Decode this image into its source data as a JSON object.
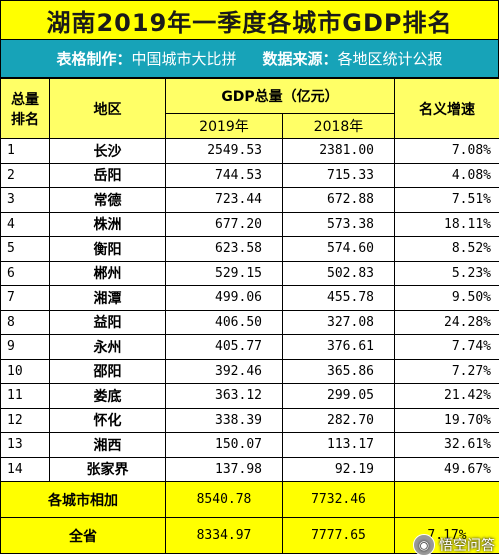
{
  "title": "湖南2019年一季度各城市GDP排名",
  "credits": {
    "maker_label": "表格制作：",
    "maker": "中国城市大比拼",
    "source_label": "数据来源：",
    "source": "各地区统计公报"
  },
  "headers": {
    "rank": "总量排名",
    "region": "地区",
    "gdp_total": "GDP总量（亿元）",
    "year_2019": "2019年",
    "year_2018": "2018年",
    "growth": "名义增速"
  },
  "rows": [
    {
      "rank": "1",
      "city": "长沙",
      "v2019": "2549.53",
      "v2018": "2381.00",
      "growth": "7.08%"
    },
    {
      "rank": "2",
      "city": "岳阳",
      "v2019": "744.53",
      "v2018": "715.33",
      "growth": "4.08%"
    },
    {
      "rank": "3",
      "city": "常德",
      "v2019": "723.44",
      "v2018": "672.88",
      "growth": "7.51%"
    },
    {
      "rank": "4",
      "city": "株洲",
      "v2019": "677.20",
      "v2018": "573.38",
      "growth": "18.11%"
    },
    {
      "rank": "5",
      "city": "衡阳",
      "v2019": "623.58",
      "v2018": "574.60",
      "growth": "8.52%"
    },
    {
      "rank": "6",
      "city": "郴州",
      "v2019": "529.15",
      "v2018": "502.83",
      "growth": "5.23%"
    },
    {
      "rank": "7",
      "city": "湘潭",
      "v2019": "499.06",
      "v2018": "455.78",
      "growth": "9.50%"
    },
    {
      "rank": "8",
      "city": "益阳",
      "v2019": "406.50",
      "v2018": "327.08",
      "growth": "24.28%"
    },
    {
      "rank": "9",
      "city": "永州",
      "v2019": "405.77",
      "v2018": "376.61",
      "growth": "7.74%"
    },
    {
      "rank": "10",
      "city": "邵阳",
      "v2019": "392.46",
      "v2018": "365.86",
      "growth": "7.27%"
    },
    {
      "rank": "11",
      "city": "娄底",
      "v2019": "363.12",
      "v2018": "299.05",
      "growth": "21.42%"
    },
    {
      "rank": "12",
      "city": "怀化",
      "v2019": "338.39",
      "v2018": "282.70",
      "growth": "19.70%"
    },
    {
      "rank": "13",
      "city": "湘西",
      "v2019": "150.07",
      "v2018": "113.17",
      "growth": "32.61%"
    },
    {
      "rank": "14",
      "city": "张家界",
      "v2019": "137.98",
      "v2018": "92.19",
      "growth": "49.67%"
    }
  ],
  "totals": [
    {
      "label": "各城市相加",
      "v2019": "8540.78",
      "v2018": "7732.46",
      "growth": ""
    },
    {
      "label": "全省",
      "v2019": "8334.97",
      "v2018": "7777.65",
      "growth": "7.17%"
    }
  ],
  "watermark": "悟空问答",
  "colors": {
    "title_bg": "#ffff00",
    "subtitle_bg": "#17a3b8",
    "header_bg": "#ffff66"
  }
}
